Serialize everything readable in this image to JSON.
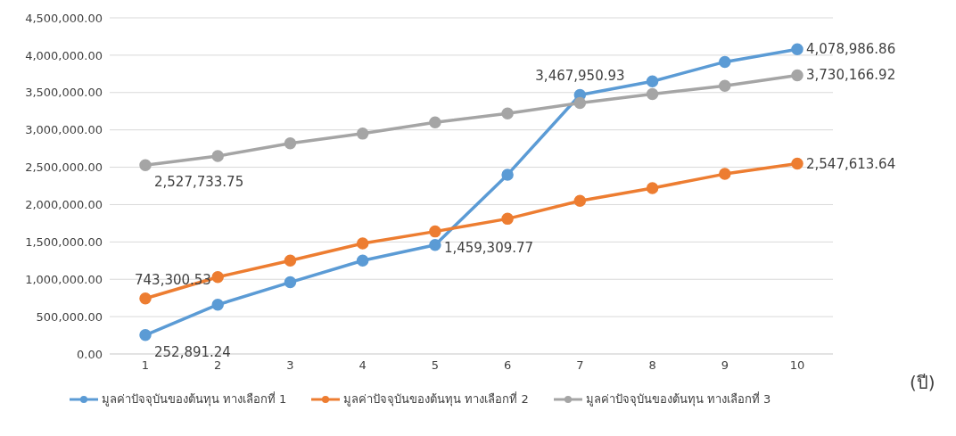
{
  "chart_data": {
    "type": "line",
    "xlabel": "(ปี)",
    "categories": [
      "1",
      "2",
      "3",
      "4",
      "5",
      "6",
      "7",
      "8",
      "9",
      "10"
    ],
    "ylim": [
      0,
      4500000
    ],
    "yticks": [
      {
        "value": 0,
        "label": "0.00"
      },
      {
        "value": 500000,
        "label": "500,000.00"
      },
      {
        "value": 1000000,
        "label": "1,000,000.00"
      },
      {
        "value": 1500000,
        "label": "1,500,000.00"
      },
      {
        "value": 2000000,
        "label": "2,000,000.00"
      },
      {
        "value": 2500000,
        "label": "2,500,000.00"
      },
      {
        "value": 3000000,
        "label": "3,000,000.00"
      },
      {
        "value": 3500000,
        "label": "3,500,000.00"
      },
      {
        "value": 4000000,
        "label": "4,000,000.00"
      },
      {
        "value": 4500000,
        "label": "4,500,000.00"
      }
    ],
    "grid": "y",
    "legend": "bottom",
    "marker": "circle",
    "line_style": "solid",
    "series": [
      {
        "name": "มูลค่าปัจจุบันของต้นทุน ทางเลือกที่ 1",
        "color": "#5b9bd5",
        "values": [
          252891.24,
          660000,
          960000,
          1250000,
          1459309.77,
          2400000,
          3467950.93,
          3650000,
          3910000,
          4078986.86
        ],
        "value_labels": [
          "252,891.24",
          null,
          null,
          null,
          "1,459,309.77",
          null,
          "3,467,950.93",
          null,
          null,
          "4,078,986.86"
        ]
      },
      {
        "name": "มูลค่าปัจจุบันของต้นทุน ทางเลือกที่ 2",
        "color": "#ed7d31",
        "values": [
          743300.53,
          1030000,
          1250000,
          1480000,
          1640000,
          1810000,
          2050000,
          2220000,
          2410000,
          2547613.64
        ],
        "value_labels": [
          "743,300.53",
          null,
          null,
          null,
          null,
          null,
          null,
          null,
          null,
          "2,547,613.64"
        ]
      },
      {
        "name": "มูลค่าปัจจุบันของต้นทุน ทางเลือกที่ 3",
        "color": "#a5a5a5",
        "values": [
          2527733.75,
          2650000,
          2820000,
          2950000,
          3100000,
          3220000,
          3360000,
          3480000,
          3590000,
          3730166.92
        ],
        "value_labels": [
          "2,527,733.75",
          null,
          null,
          null,
          null,
          null,
          null,
          null,
          null,
          "3,730,166.92"
        ]
      }
    ]
  }
}
